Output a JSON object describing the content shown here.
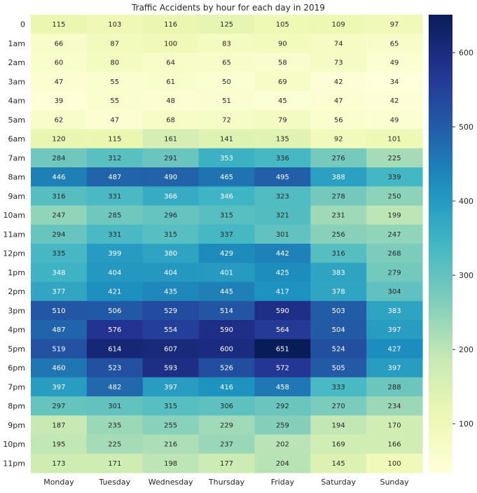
{
  "chart_data": {
    "type": "heatmap",
    "title": "Traffic Accidents by hour for each day in 2019",
    "xlabel": "",
    "ylabel": "",
    "columns": [
      "Monday",
      "Tuesday",
      "Wednesday",
      "Thursday",
      "Friday",
      "Saturday",
      "Sunday"
    ],
    "rows": [
      "0",
      "1am",
      "2am",
      "3am",
      "4am",
      "5am",
      "6am",
      "7am",
      "8am",
      "9am",
      "10am",
      "11am",
      "12pm",
      "1pm",
      "2pm",
      "3pm",
      "4pm",
      "5pm",
      "6pm",
      "7pm",
      "8pm",
      "9pm",
      "10pm",
      "11pm"
    ],
    "values": [
      [
        115,
        103,
        116,
        125,
        105,
        109,
        97
      ],
      [
        66,
        87,
        100,
        83,
        90,
        74,
        65
      ],
      [
        60,
        80,
        64,
        65,
        58,
        73,
        49
      ],
      [
        47,
        55,
        61,
        50,
        69,
        42,
        34
      ],
      [
        39,
        55,
        48,
        51,
        45,
        47,
        42
      ],
      [
        62,
        47,
        68,
        72,
        79,
        56,
        49
      ],
      [
        120,
        115,
        161,
        141,
        135,
        92,
        101
      ],
      [
        284,
        312,
        291,
        353,
        336,
        276,
        225
      ],
      [
        446,
        487,
        490,
        465,
        495,
        388,
        339
      ],
      [
        316,
        331,
        366,
        346,
        323,
        278,
        250
      ],
      [
        247,
        285,
        296,
        315,
        321,
        231,
        199
      ],
      [
        294,
        331,
        315,
        337,
        301,
        256,
        247
      ],
      [
        335,
        399,
        380,
        429,
        442,
        316,
        268
      ],
      [
        348,
        404,
        404,
        401,
        425,
        383,
        279
      ],
      [
        377,
        421,
        435,
        445,
        417,
        378,
        304
      ],
      [
        510,
        506,
        529,
        514,
        590,
        503,
        383
      ],
      [
        487,
        576,
        554,
        590,
        564,
        504,
        397
      ],
      [
        519,
        614,
        607,
        600,
        651,
        524,
        427
      ],
      [
        460,
        523,
        593,
        526,
        572,
        505,
        397
      ],
      [
        397,
        482,
        397,
        416,
        458,
        333,
        288
      ],
      [
        297,
        301,
        315,
        306,
        292,
        270,
        234
      ],
      [
        187,
        235,
        255,
        229,
        259,
        194,
        170
      ],
      [
        195,
        225,
        216,
        237,
        202,
        169,
        166
      ],
      [
        173,
        171,
        198,
        177,
        204,
        145,
        100
      ]
    ],
    "colorbar": {
      "min": 34,
      "max": 651,
      "ticks": [
        100,
        200,
        300,
        400,
        500,
        600
      ],
      "colormap": "YlGnBu"
    },
    "grid": false
  }
}
